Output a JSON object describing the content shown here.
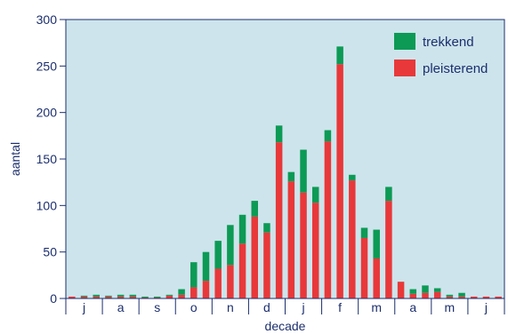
{
  "chart_data": {
    "type": "bar",
    "stacked": true,
    "xlabel": "decade",
    "ylabel": "aantal",
    "ylim": [
      0,
      300
    ],
    "yticks": [
      0,
      50,
      100,
      150,
      200,
      250,
      300
    ],
    "grid": false,
    "legend_position": "top-right",
    "month_labels": [
      "j",
      "a",
      "s",
      "o",
      "n",
      "d",
      "j",
      "f",
      "m",
      "a",
      "m",
      "j"
    ],
    "series": [
      {
        "name": "pleisterend",
        "color": "#e8383a",
        "values": [
          2,
          2,
          2,
          2,
          2,
          2,
          1,
          1,
          3,
          4,
          12,
          19,
          32,
          36,
          59,
          88,
          71,
          168,
          126,
          114,
          103,
          169,
          252,
          127,
          65,
          43,
          105,
          18,
          5,
          6,
          7,
          2,
          2,
          2,
          2,
          2
        ]
      },
      {
        "name": "trekkend",
        "color": "#0c9a55",
        "values": [
          0,
          1,
          2,
          1,
          2,
          2,
          1,
          1,
          1,
          6,
          27,
          31,
          30,
          43,
          31,
          17,
          10,
          18,
          10,
          46,
          17,
          12,
          19,
          6,
          11,
          31,
          15,
          0,
          5,
          8,
          4,
          2,
          4,
          0,
          0,
          0
        ]
      }
    ]
  },
  "colors": {
    "plot_background": "#cde4ec",
    "axis": "#1c2f6e",
    "text": "#1c2f6e"
  }
}
